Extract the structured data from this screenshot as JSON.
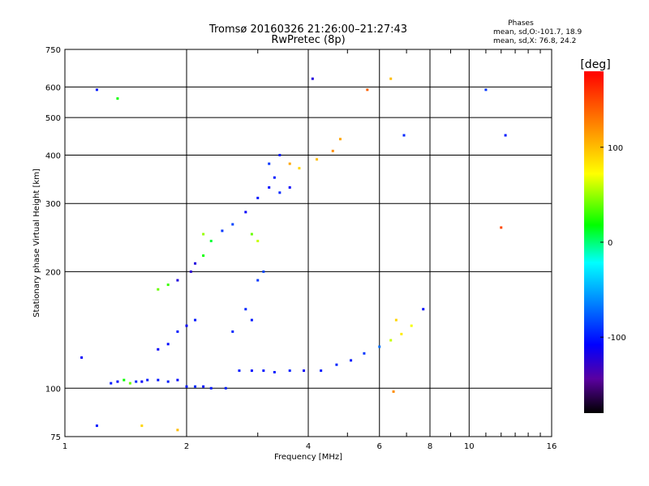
{
  "chart_data": {
    "type": "scatter",
    "title": "Tromsø 20160326 21:26:00–21:27:43",
    "subtitle": "RwPretec (8p)",
    "xlabel": "Frequency [MHz]",
    "ylabel": "Stationary phase Virtual Height [km]",
    "x_scale": "log",
    "y_scale": "log",
    "xlim": [
      1,
      16
    ],
    "ylim": [
      75,
      750
    ],
    "x_ticks": [
      1,
      2,
      4,
      6,
      8,
      10,
      16
    ],
    "y_ticks": [
      75,
      100,
      200,
      300,
      400,
      500,
      600,
      750
    ],
    "grid": true,
    "phases_title": "Phases",
    "phases_o": "mean, sd,O:-101.7, 18.9",
    "phases_x": "mean, sd,X:  76.8, 24.2",
    "colorbar": {
      "label": "[deg]",
      "range": [
        -180,
        180
      ],
      "ticks": [
        100,
        0,
        -100
      ]
    },
    "series": [
      {
        "points": [
          [
            1.3,
            103,
            -100
          ],
          [
            1.35,
            104,
            -105
          ],
          [
            1.4,
            105,
            20
          ],
          [
            1.45,
            103,
            40
          ],
          [
            1.5,
            104,
            -95
          ],
          [
            1.55,
            104,
            -110
          ],
          [
            1.6,
            105,
            -100
          ],
          [
            1.7,
            105,
            -102
          ],
          [
            1.8,
            104,
            -98
          ],
          [
            1.9,
            105,
            -105
          ],
          [
            2.0,
            101,
            -100
          ],
          [
            2.1,
            101,
            -95
          ],
          [
            2.2,
            101,
            -103
          ],
          [
            2.3,
            100,
            -100
          ],
          [
            2.5,
            100,
            -98
          ],
          [
            2.7,
            111,
            -100
          ],
          [
            2.9,
            111,
            -105
          ],
          [
            3.1,
            111,
            -102
          ],
          [
            3.3,
            110,
            -100
          ],
          [
            3.6,
            111,
            -98
          ],
          [
            3.9,
            111,
            -110
          ],
          [
            4.3,
            111,
            -100
          ],
          [
            4.7,
            115,
            -95
          ],
          [
            5.1,
            118,
            -100
          ],
          [
            5.5,
            123,
            -90
          ],
          [
            6.0,
            128,
            -70
          ],
          [
            6.4,
            133,
            60
          ],
          [
            6.8,
            138,
            80
          ],
          [
            7.2,
            145,
            70
          ],
          [
            6.6,
            150,
            90
          ],
          [
            1.7,
            126,
            -110
          ],
          [
            1.8,
            130,
            -105
          ],
          [
            1.9,
            140,
            -100
          ],
          [
            2.0,
            145,
            -110
          ],
          [
            2.1,
            150,
            -100
          ],
          [
            1.7,
            180,
            40
          ],
          [
            1.8,
            185,
            30
          ],
          [
            1.9,
            190,
            -120
          ],
          [
            2.05,
            200,
            -125
          ],
          [
            2.1,
            210,
            -120
          ],
          [
            2.2,
            220,
            20
          ],
          [
            2.3,
            240,
            10
          ],
          [
            2.45,
            255,
            -90
          ],
          [
            2.6,
            265,
            -85
          ],
          [
            2.8,
            285,
            -110
          ],
          [
            3.0,
            310,
            -100
          ],
          [
            3.2,
            330,
            -105
          ],
          [
            3.4,
            320,
            -95
          ],
          [
            3.6,
            330,
            -110
          ],
          [
            3.3,
            350,
            -100
          ],
          [
            3.2,
            380,
            -90
          ],
          [
            3.4,
            400,
            -100
          ],
          [
            3.6,
            380,
            110
          ],
          [
            3.8,
            370,
            90
          ],
          [
            4.2,
            390,
            100
          ],
          [
            4.6,
            410,
            120
          ],
          [
            4.8,
            440,
            110
          ],
          [
            3.0,
            190,
            -90
          ],
          [
            3.1,
            200,
            -85
          ],
          [
            2.8,
            160,
            -95
          ],
          [
            2.9,
            150,
            -100
          ],
          [
            2.6,
            140,
            -95
          ],
          [
            3.0,
            240,
            60
          ],
          [
            2.9,
            250,
            40
          ],
          [
            2.2,
            250,
            50
          ],
          [
            1.2,
            590,
            -100
          ],
          [
            1.35,
            560,
            20
          ],
          [
            4.1,
            630,
            -120
          ],
          [
            5.6,
            590,
            140
          ],
          [
            6.4,
            630,
            100
          ],
          [
            11.0,
            590,
            -90
          ],
          [
            12.3,
            450,
            -100
          ],
          [
            12.0,
            260,
            150
          ],
          [
            6.9,
            450,
            -95
          ],
          [
            7.7,
            160,
            -105
          ],
          [
            1.1,
            120,
            -110
          ],
          [
            1.2,
            80,
            -100
          ],
          [
            1.55,
            80,
            90
          ],
          [
            1.9,
            78,
            100
          ],
          [
            6.5,
            98,
            120
          ]
        ]
      }
    ]
  }
}
